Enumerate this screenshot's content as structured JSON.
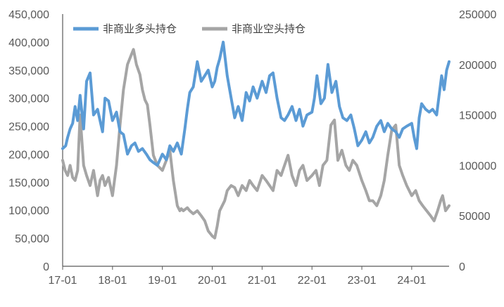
{
  "chart_data": {
    "type": "line",
    "title": "",
    "xlabel": "",
    "ylabel": "",
    "grid": false,
    "legend_position": "top-left",
    "x_ticks": [
      "17-01",
      "18-01",
      "19-01",
      "20-01",
      "21-01",
      "22-01",
      "23-01",
      "24-01"
    ],
    "x_range": [
      2017.0,
      2024.75
    ],
    "y_left": {
      "range": [
        0,
        450000
      ],
      "ticks": [
        "0",
        "50,000",
        "100,000",
        "150,000",
        "200,000",
        "250,000",
        "300,000",
        "350,000",
        "400,000",
        "450,000"
      ]
    },
    "y_right": {
      "range": [
        0,
        250000
      ],
      "ticks": [
        "0",
        "50000",
        "100000",
        "150000",
        "200000",
        "250000"
      ]
    },
    "series": [
      {
        "name": "非商业多头持仓",
        "axis": "left",
        "color": "#5B9BD5",
        "x": [
          2017.0,
          2017.06,
          2017.1,
          2017.15,
          2017.2,
          2017.25,
          2017.3,
          2017.35,
          2017.42,
          2017.48,
          2017.55,
          2017.62,
          2017.7,
          2017.75,
          2017.8,
          2017.85,
          2017.92,
          2018.0,
          2018.08,
          2018.15,
          2018.22,
          2018.3,
          2018.38,
          2018.45,
          2018.52,
          2018.6,
          2018.68,
          2018.75,
          2018.82,
          2018.9,
          2019.0,
          2019.08,
          2019.15,
          2019.22,
          2019.3,
          2019.38,
          2019.45,
          2019.5,
          2019.55,
          2019.62,
          2019.7,
          2019.78,
          2019.85,
          2019.92,
          2020.0,
          2020.05,
          2020.1,
          2020.15,
          2020.22,
          2020.3,
          2020.38,
          2020.45,
          2020.52,
          2020.6,
          2020.68,
          2020.75,
          2020.82,
          2020.9,
          2021.0,
          2021.08,
          2021.15,
          2021.22,
          2021.3,
          2021.38,
          2021.45,
          2021.52,
          2021.6,
          2021.68,
          2021.75,
          2021.82,
          2021.9,
          2022.0,
          2022.05,
          2022.1,
          2022.18,
          2022.25,
          2022.32,
          2022.4,
          2022.48,
          2022.55,
          2022.62,
          2022.7,
          2022.78,
          2022.85,
          2022.92,
          2023.0,
          2023.08,
          2023.15,
          2023.22,
          2023.3,
          2023.38,
          2023.45,
          2023.52,
          2023.6,
          2023.68,
          2023.75,
          2023.82,
          2023.9,
          2024.0,
          2024.05,
          2024.1,
          2024.15,
          2024.2,
          2024.28,
          2024.35,
          2024.42,
          2024.5,
          2024.55,
          2024.6,
          2024.65,
          2024.7,
          2024.75
        ],
        "values": [
          210000,
          215000,
          230000,
          245000,
          255000,
          285000,
          260000,
          305000,
          245000,
          330000,
          345000,
          270000,
          280000,
          260000,
          240000,
          300000,
          295000,
          260000,
          275000,
          240000,
          235000,
          200000,
          215000,
          220000,
          205000,
          210000,
          200000,
          190000,
          185000,
          180000,
          200000,
          190000,
          215000,
          205000,
          220000,
          200000,
          245000,
          280000,
          310000,
          320000,
          365000,
          330000,
          340000,
          350000,
          320000,
          330000,
          355000,
          370000,
          400000,
          340000,
          300000,
          265000,
          285000,
          260000,
          310000,
          295000,
          320000,
          300000,
          330000,
          310000,
          340000,
          345000,
          300000,
          265000,
          260000,
          270000,
          285000,
          260000,
          280000,
          250000,
          270000,
          275000,
          300000,
          340000,
          290000,
          300000,
          360000,
          310000,
          330000,
          285000,
          265000,
          260000,
          270000,
          245000,
          215000,
          225000,
          240000,
          220000,
          230000,
          250000,
          260000,
          240000,
          255000,
          245000,
          240000,
          230000,
          245000,
          250000,
          255000,
          230000,
          210000,
          265000,
          290000,
          280000,
          275000,
          280000,
          270000,
          305000,
          340000,
          315000,
          350000,
          365000
        ]
      },
      {
        "name": "非商业空头持仓",
        "axis": "right",
        "color": "#A5A5A5",
        "x": [
          2017.0,
          2017.05,
          2017.1,
          2017.15,
          2017.2,
          2017.25,
          2017.3,
          2017.35,
          2017.42,
          2017.48,
          2017.55,
          2017.62,
          2017.7,
          2017.75,
          2017.8,
          2017.85,
          2017.92,
          2018.0,
          2018.08,
          2018.15,
          2018.22,
          2018.3,
          2018.38,
          2018.42,
          2018.48,
          2018.55,
          2018.6,
          2018.65,
          2018.7,
          2018.75,
          2018.82,
          2018.9,
          2019.0,
          2019.08,
          2019.15,
          2019.22,
          2019.3,
          2019.35,
          2019.38,
          2019.42,
          2019.5,
          2019.55,
          2019.62,
          2019.7,
          2019.78,
          2019.85,
          2019.92,
          2020.0,
          2020.05,
          2020.1,
          2020.15,
          2020.2,
          2020.25,
          2020.3,
          2020.38,
          2020.45,
          2020.52,
          2020.6,
          2020.68,
          2020.75,
          2020.82,
          2020.9,
          2021.0,
          2021.08,
          2021.15,
          2021.22,
          2021.3,
          2021.38,
          2021.45,
          2021.52,
          2021.6,
          2021.68,
          2021.75,
          2021.82,
          2021.9,
          2022.0,
          2022.08,
          2022.15,
          2022.22,
          2022.3,
          2022.38,
          2022.45,
          2022.52,
          2022.6,
          2022.68,
          2022.75,
          2022.82,
          2022.9,
          2023.0,
          2023.08,
          2023.15,
          2023.22,
          2023.3,
          2023.38,
          2023.45,
          2023.52,
          2023.6,
          2023.68,
          2023.75,
          2023.82,
          2023.9,
          2024.0,
          2024.08,
          2024.15,
          2024.22,
          2024.3,
          2024.38,
          2024.45,
          2024.52,
          2024.58,
          2024.62,
          2024.68,
          2024.75
        ],
        "values": [
          105000,
          95000,
          90000,
          100000,
          88000,
          85000,
          95000,
          150000,
          100000,
          90000,
          80000,
          95000,
          70000,
          85000,
          90000,
          80000,
          88000,
          70000,
          100000,
          140000,
          175000,
          200000,
          210000,
          215000,
          200000,
          190000,
          175000,
          165000,
          160000,
          140000,
          110000,
          100000,
          95000,
          105000,
          115000,
          85000,
          60000,
          55000,
          57000,
          55000,
          58000,
          55000,
          52000,
          55000,
          50000,
          45000,
          35000,
          30000,
          28000,
          40000,
          55000,
          60000,
          65000,
          75000,
          80000,
          78000,
          70000,
          80000,
          75000,
          85000,
          80000,
          75000,
          90000,
          85000,
          80000,
          75000,
          95000,
          90000,
          100000,
          110000,
          90000,
          80000,
          95000,
          100000,
          85000,
          90000,
          95000,
          80000,
          100000,
          105000,
          140000,
          145000,
          105000,
          115000,
          100000,
          95000,
          105000,
          100000,
          85000,
          75000,
          65000,
          65000,
          60000,
          70000,
          85000,
          110000,
          135000,
          140000,
          100000,
          90000,
          80000,
          70000,
          75000,
          65000,
          60000,
          55000,
          50000,
          45000,
          55000,
          65000,
          70000,
          55000,
          60000
        ]
      }
    ]
  }
}
